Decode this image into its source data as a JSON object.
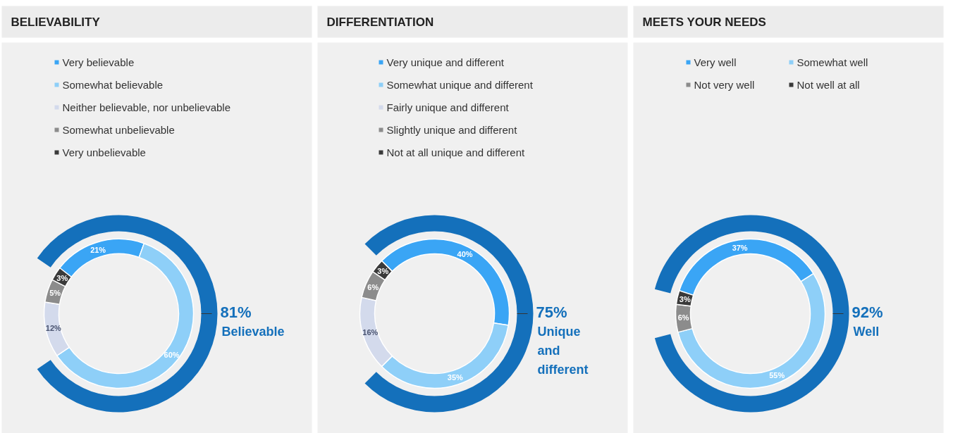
{
  "chart_data": [
    {
      "type": "donut",
      "title": "BELIEVABILITY",
      "legend": "top",
      "categories": [
        "Very believable",
        "Somewhat believable",
        "Neither believable, nor unbelievable",
        "Somewhat unbelievable",
        "Very unbelievable"
      ],
      "values": [
        21,
        60,
        12,
        5,
        3
      ],
      "colors": [
        "#3aa5f5",
        "#8ecff8",
        "#d3daec",
        "#8c8c8c",
        "#3a3a3a"
      ],
      "value_labels": [
        "21%",
        "60%",
        "12%",
        "5%",
        "3%"
      ],
      "series": [
        {
          "name": "Believable",
          "colors": [
            "#1470bb",
            null,
            null,
            null,
            null
          ],
          "values": [
            81,
            null,
            null,
            null,
            null
          ],
          "value_labels": [
            "81%",
            null,
            null,
            null,
            null
          ]
        }
      ]
    },
    {
      "type": "donut",
      "title": "DIFFERENTIATION",
      "legend": "top",
      "categories": [
        "Very unique and different",
        "Somewhat unique and different",
        "Fairly unique and different",
        "Slightly unique and different",
        "Not at all unique and different"
      ],
      "values": [
        40,
        35,
        16,
        6,
        3
      ],
      "colors": [
        "#3aa5f5",
        "#8ecff8",
        "#d3daec",
        "#8c8c8c",
        "#3a3a3a"
      ],
      "value_labels": [
        "40%",
        "35%",
        "16%",
        "6%",
        "3%"
      ],
      "series": [
        {
          "name": "Unique and different",
          "colors": [
            "#1470bb",
            null,
            null,
            null,
            null
          ],
          "values": [
            75,
            null,
            null,
            null,
            null
          ],
          "value_labels": [
            "75%",
            null,
            null,
            null,
            null
          ]
        }
      ]
    },
    {
      "type": "donut",
      "title": "MEETS YOUR NEEDS",
      "legend": "top",
      "categories": [
        "Very well",
        "Somewhat well",
        "Not very well",
        "Not well at all"
      ],
      "values": [
        37,
        55,
        6,
        3
      ],
      "colors": [
        "#3aa5f5",
        "#8ecff8",
        "#8c8c8c",
        "#3a3a3a"
      ],
      "value_labels": [
        "37%",
        "55%",
        "6%",
        "3%"
      ],
      "series": [
        {
          "name": "Well",
          "colors": [
            "#1470bb",
            null,
            null,
            null
          ],
          "values": [
            92,
            null,
            null,
            null
          ],
          "value_labels": [
            "92%",
            null,
            null,
            null
          ]
        }
      ]
    }
  ]
}
